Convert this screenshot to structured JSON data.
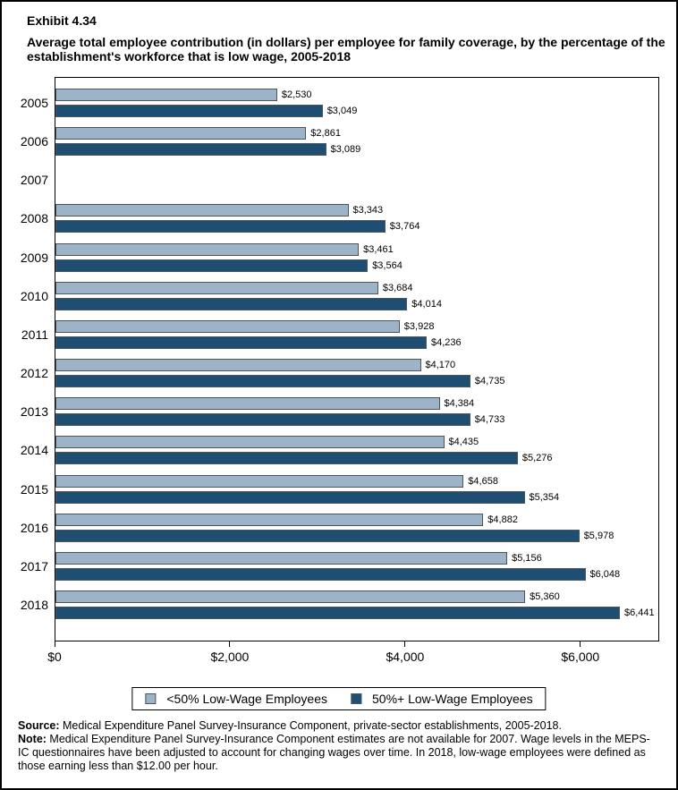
{
  "page": {
    "exhibit_label": "Exhibit 4.34",
    "title": "Average total employee contribution (in dollars) per employee for family coverage, by the percentage of the establishment's workforce that is low wage, 2005-2018"
  },
  "chart_data": {
    "type": "bar",
    "orientation": "horizontal",
    "title": "Average total employee contribution (in dollars) per employee for family coverage, by the percentage of the establishment's workforce that is low wage, 2005-2018",
    "categories": [
      "2005",
      "2006",
      "2007",
      "2008",
      "2009",
      "2010",
      "2011",
      "2012",
      "2013",
      "2014",
      "2015",
      "2016",
      "2017",
      "2018"
    ],
    "series": [
      {
        "name": "<50% Low-Wage Employees",
        "color": "#9DB3C7",
        "values": [
          2530,
          2861,
          null,
          3343,
          3461,
          3684,
          3928,
          4170,
          4384,
          4435,
          4658,
          4882,
          5156,
          5360
        ],
        "labels": [
          "$2,530",
          "$2,861",
          null,
          "$3,343",
          "$3,461",
          "$3,684",
          "$3,928",
          "$4,170",
          "$4,384",
          "$4,435",
          "$4,658",
          "$4,882",
          "$5,156",
          "$5,360"
        ]
      },
      {
        "name": "50%+ Low-Wage Employees",
        "color": "#1F4E73",
        "values": [
          3049,
          3089,
          null,
          3764,
          3564,
          4014,
          4236,
          4735,
          4733,
          5276,
          5354,
          5978,
          6048,
          6441
        ],
        "labels": [
          "$3,049",
          "$3,089",
          null,
          "$3,764",
          "$3,564",
          "$4,014",
          "$4,236",
          "$4,735",
          "$4,733",
          "$5,276",
          "$5,354",
          "$5,978",
          "$6,048",
          "$6,441"
        ]
      }
    ],
    "xlabel": "",
    "ylabel": "",
    "xlim": [
      0,
      6900
    ],
    "x_ticks": [
      {
        "value": 0,
        "label": "$0"
      },
      {
        "value": 2000,
        "label": "$2,000"
      },
      {
        "value": 4000,
        "label": "$4,000"
      },
      {
        "value": 6000,
        "label": "$6,000"
      }
    ],
    "grid": false,
    "legend_position": "bottom"
  },
  "legend": {
    "items": [
      {
        "label": "<50% Low-Wage Employees",
        "color": "#9DB3C7"
      },
      {
        "label": "50%+ Low-Wage Employees",
        "color": "#1F4E73"
      }
    ]
  },
  "footnotes": {
    "source_label": "Source:",
    "source_text": " Medical Expenditure Panel Survey-Insurance Component, private-sector establishments, 2005-2018.",
    "note_label": "Note:",
    "note_text": " Medical Expenditure Panel Survey-Insurance Component estimates are not available for 2007. Wage levels in the MEPS-IC questionnaires have been adjusted to account for changing wages over time. In 2018, low-wage employees were defined as those earning less than $12.00 per hour."
  },
  "colors": {
    "bar_border": "#4D545B",
    "frame": "#000000",
    "light_series": "#9DB3C7",
    "dark_series": "#1F4E73"
  }
}
